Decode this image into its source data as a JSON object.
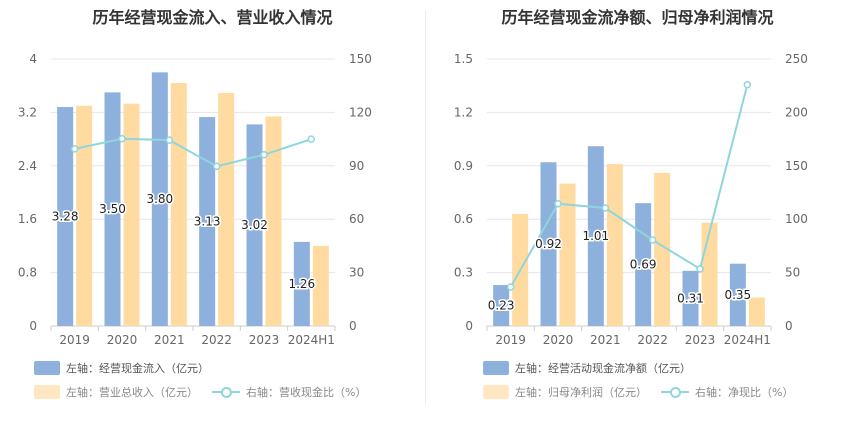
{
  "chart_data": [
    {
      "type": "bar",
      "title": "历年经营现金流入、营业收入情况",
      "categories": [
        "2019",
        "2020",
        "2021",
        "2022",
        "2023",
        "2024H1"
      ],
      "left_axis": {
        "ylim": [
          0,
          4
        ],
        "ticks": [
          "0",
          "0.8",
          "1.6",
          "2.4",
          "3.2",
          "4"
        ]
      },
      "right_axis": {
        "ylim": [
          0,
          150
        ],
        "ticks": [
          "0",
          "30",
          "60",
          "90",
          "120",
          "150"
        ]
      },
      "series": [
        {
          "name": "左轴：经营现金流入（亿元）",
          "kind": "bar",
          "axis": "left",
          "color": "#8eb0dc",
          "values": [
            3.28,
            3.5,
            3.8,
            3.13,
            3.02,
            1.26
          ],
          "labels": [
            "3.28",
            "3.50",
            "3.80",
            "3.13",
            "3.02",
            "1.26"
          ]
        },
        {
          "name": "左轴：营业总收入（亿元）",
          "kind": "bar",
          "axis": "left",
          "color": "#ffdba1",
          "values": [
            3.3,
            3.33,
            3.64,
            3.49,
            3.14,
            1.2
          ]
        },
        {
          "name": "右轴：营收现金比（%）",
          "kind": "line",
          "axis": "right",
          "color": "#8fd6dc",
          "values": [
            99.5,
            105.2,
            104.4,
            89.7,
            96.2,
            105.0
          ]
        }
      ],
      "legend_position": "bottom"
    },
    {
      "type": "bar",
      "title": "历年经营现金流净额、归母净利润情况",
      "categories": [
        "2019",
        "2020",
        "2021",
        "2022",
        "2023",
        "2024H1"
      ],
      "left_axis": {
        "ylim": [
          0,
          1.5
        ],
        "ticks": [
          "0",
          "0.3",
          "0.6",
          "0.9",
          "1.2",
          "1.5"
        ]
      },
      "right_axis": {
        "ylim": [
          0,
          250
        ],
        "ticks": [
          "0",
          "50",
          "100",
          "150",
          "200",
          "250"
        ]
      },
      "series": [
        {
          "name": "左轴：经营活动现金流净额（亿元）",
          "kind": "bar",
          "axis": "left",
          "color": "#8eb0dc",
          "values": [
            0.23,
            0.92,
            1.01,
            0.69,
            0.31,
            0.35
          ],
          "labels": [
            "0.23",
            "0.92",
            "1.01",
            "0.69",
            "0.31",
            "0.35"
          ]
        },
        {
          "name": "左轴：归母净利润（亿元）",
          "kind": "bar",
          "axis": "left",
          "color": "#ffdba1",
          "values": [
            0.63,
            0.8,
            0.91,
            0.86,
            0.58,
            0.16
          ]
        },
        {
          "name": "右轴：净现比（%）",
          "kind": "line",
          "axis": "right",
          "color": "#8fd6dc",
          "values": [
            36.5,
            114.5,
            110.5,
            80.5,
            53.5,
            226.0
          ]
        }
      ],
      "legend_position": "bottom"
    }
  ]
}
